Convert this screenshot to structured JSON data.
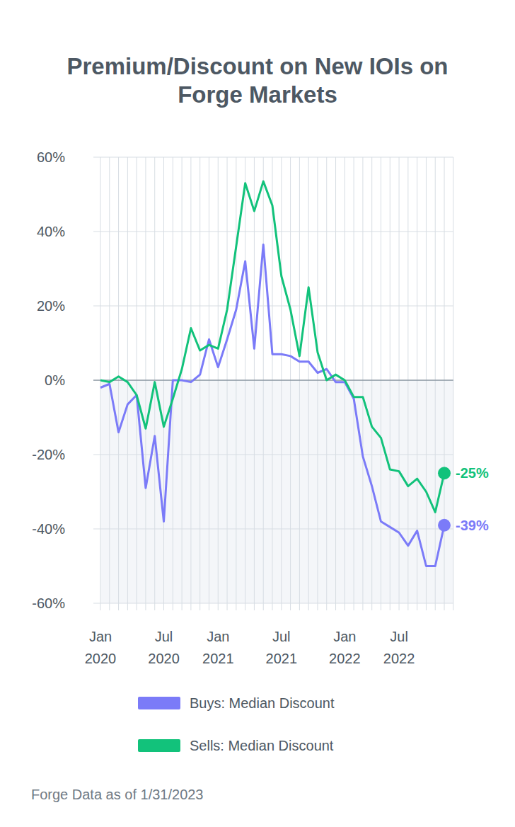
{
  "chart_data": {
    "type": "line",
    "title": "Premium/Discount on New IOIs on Forge Markets",
    "footnote": "Forge Data as of 1/31/2023",
    "categories": [
      "Jan 2020",
      null,
      null,
      null,
      null,
      null,
      null,
      "Jul 2020",
      null,
      null,
      null,
      null,
      null,
      "Jan 2021",
      null,
      null,
      null,
      null,
      null,
      null,
      "Jul 2021",
      null,
      null,
      null,
      null,
      null,
      null,
      "Jan 2022",
      null,
      null,
      null,
      null,
      null,
      "Jul 2022",
      null,
      null,
      null,
      null,
      null
    ],
    "series": [
      {
        "name": "Buys: Median Discount",
        "color": "#7b7bf8",
        "values": [
          -2,
          -1,
          -14,
          -6.5,
          -4,
          -29,
          -15,
          -38,
          0,
          0,
          -0.5,
          1.5,
          11,
          3.5,
          11,
          19,
          32,
          8.5,
          36.5,
          7,
          7,
          6.5,
          5,
          5,
          2,
          3,
          -0.5,
          -0.5,
          -5,
          -20.5,
          -28.5,
          -38,
          -39.5,
          -41,
          -44.5,
          -40.5,
          -50,
          -50,
          -39
        ],
        "value_labels": [
          null,
          null,
          null,
          null,
          null,
          null,
          null,
          null,
          null,
          null,
          null,
          null,
          null,
          null,
          null,
          null,
          null,
          null,
          null,
          null,
          null,
          null,
          null,
          null,
          null,
          null,
          null,
          null,
          null,
          null,
          null,
          null,
          null,
          null,
          null,
          null,
          null,
          null,
          "-39%"
        ]
      },
      {
        "name": "Sells: Median Discount",
        "color": "#12c27b",
        "values": [
          0,
          -0.5,
          1,
          -0.5,
          -4,
          -13,
          -0.5,
          -12.5,
          -5,
          3,
          14,
          8,
          9.5,
          8.5,
          19,
          36,
          53,
          45.5,
          53.5,
          47,
          28,
          19,
          6.5,
          25,
          7.5,
          0,
          1.5,
          0,
          -4.5,
          -4.5,
          -12.5,
          -15.5,
          -24,
          -24.5,
          -28.5,
          -26.5,
          -30,
          -35.5,
          -25
        ],
        "value_labels": [
          null,
          null,
          null,
          null,
          null,
          null,
          null,
          null,
          null,
          null,
          null,
          null,
          null,
          null,
          null,
          null,
          null,
          null,
          null,
          null,
          null,
          null,
          null,
          null,
          null,
          null,
          null,
          null,
          null,
          null,
          null,
          null,
          null,
          null,
          null,
          null,
          null,
          null,
          "-25%"
        ]
      }
    ],
    "ylim": [
      -60,
      60
    ],
    "yticks": [
      {
        "value": 60,
        "label": "60%"
      },
      {
        "value": 40,
        "label": "40%"
      },
      {
        "value": 20,
        "label": "20%"
      },
      {
        "value": 0,
        "label": "0%"
      },
      {
        "value": -20,
        "label": "-20%"
      },
      {
        "value": -40,
        "label": "-40%"
      },
      {
        "value": -60,
        "label": "-60%"
      }
    ],
    "grid": true,
    "legend": "bottom"
  }
}
